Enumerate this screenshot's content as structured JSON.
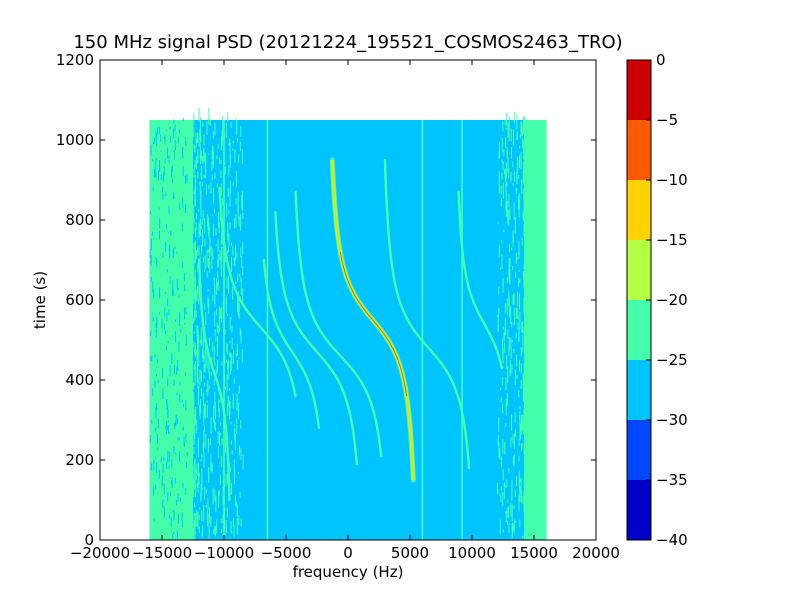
{
  "chart_data": {
    "type": "heatmap",
    "title": "150 MHz signal PSD (20121224_195521_COSMOS2463_TRO)",
    "xlabel": "frequency (Hz)",
    "ylabel": "time (s)",
    "xlim": [
      -20000,
      20000
    ],
    "ylim": [
      0,
      1200
    ],
    "x_ticks": [
      -20000,
      -15000,
      -10000,
      -5000,
      0,
      5000,
      10000,
      15000,
      20000
    ],
    "x_tick_labels": [
      "−20000",
      "−15000",
      "−10000",
      "−5000",
      "0",
      "5000",
      "10000",
      "15000",
      "20000"
    ],
    "y_ticks": [
      0,
      200,
      400,
      600,
      800,
      1000,
      1200
    ],
    "y_tick_labels": [
      "0",
      "200",
      "400",
      "600",
      "800",
      "1000",
      "1200"
    ],
    "data_extent": {
      "x": [
        -16000,
        16000
      ],
      "y": [
        0,
        1050
      ]
    },
    "background_level_range": [
      -30,
      -25
    ],
    "edge_band_level_range": [
      -25,
      -20
    ],
    "colorbar": {
      "range": [
        -40,
        0
      ],
      "ticks": [
        0,
        -5,
        -10,
        -15,
        -20,
        -25,
        -30,
        -35,
        -40
      ],
      "tick_labels": [
        "0",
        "−5",
        "−10",
        "−15",
        "−20",
        "−25",
        "−30",
        "−35",
        "−40"
      ],
      "levels": [
        {
          "range": [
            -40,
            -35
          ],
          "color": "#0000c8"
        },
        {
          "range": [
            -35,
            -30
          ],
          "color": "#0047ff"
        },
        {
          "range": [
            -30,
            -25
          ],
          "color": "#00c4ff"
        },
        {
          "range": [
            -25,
            -20
          ],
          "color": "#44ffaa"
        },
        {
          "range": [
            -20,
            -15
          ],
          "color": "#b4ff44"
        },
        {
          "range": [
            -15,
            -10
          ],
          "color": "#ffd200"
        },
        {
          "range": [
            -10,
            -5
          ],
          "color": "#ff5a00"
        },
        {
          "range": [
            -5,
            0
          ],
          "color": "#cc0000"
        }
      ]
    },
    "vertical_lines_hz": [
      -6500,
      -10000,
      6000,
      9200
    ],
    "doppler_tracks": [
      {
        "center_hz": 2000,
        "amplitude_hz": 3800,
        "t_center_s": 550,
        "t_range_s": [
          150,
          950
        ],
        "max_level": -5
      },
      {
        "center_hz": -2500,
        "amplitude_hz": 4000,
        "t_center_s": 470,
        "t_range_s": [
          190,
          820
        ],
        "max_level": -20
      },
      {
        "center_hz": 6500,
        "amplitude_hz": 4000,
        "t_center_s": 480,
        "t_range_s": [
          180,
          950
        ],
        "max_level": -20
      },
      {
        "center_hz": -600,
        "amplitude_hz": 4200,
        "t_center_s": 460,
        "t_range_s": [
          210,
          870
        ],
        "max_level": -20
      },
      {
        "center_hz": 11000,
        "amplitude_hz": 2500,
        "t_center_s": 540,
        "t_range_s": [
          430,
          870
        ],
        "max_level": -20
      },
      {
        "center_hz": -7000,
        "amplitude_hz": 4000,
        "t_center_s": 530,
        "t_range_s": [
          360,
          880
        ],
        "max_level": -20
      },
      {
        "center_hz": -4500,
        "amplitude_hz": 3000,
        "t_center_s": 470,
        "t_range_s": [
          280,
          700
        ],
        "max_level": -20
      },
      {
        "center_hz": -10800,
        "amplitude_hz": 1500,
        "t_center_s": 420,
        "t_range_s": [
          100,
          700
        ],
        "max_level": -20
      }
    ]
  }
}
